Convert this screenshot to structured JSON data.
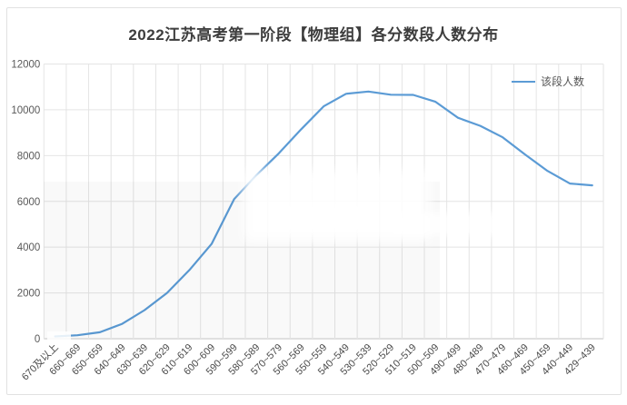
{
  "window": {
    "background": "#ffffff"
  },
  "chart_data": {
    "type": "line",
    "title": "2022江苏高考第一阶段【物理组】各分数段人数分布",
    "categories": [
      "670及以上",
      "660~669",
      "650~659",
      "640~649",
      "630~639",
      "620~629",
      "610~619",
      "600~609",
      "590~599",
      "580~589",
      "570~579",
      "560~569",
      "550~559",
      "540~549",
      "530~539",
      "520~529",
      "510~519",
      "500~509",
      "490~499",
      "480~489",
      "470~479",
      "460~469",
      "450~459",
      "440~449",
      "429~439"
    ],
    "series": [
      {
        "name": "该段人数",
        "values": [
          100,
          150,
          280,
          650,
          1250,
          2000,
          3000,
          4150,
          6100,
          7150,
          8100,
          9150,
          10150,
          10700,
          10800,
          10660,
          10650,
          10350,
          9650,
          9300,
          8800,
          8050,
          7330,
          6780,
          6700
        ]
      }
    ],
    "xlabel": "",
    "ylabel": "",
    "ylim": [
      0,
      12000
    ],
    "yticks": [
      0,
      2000,
      4000,
      6000,
      8000,
      10000,
      12000
    ],
    "ytick_labels": [
      "0",
      "2000",
      "4000",
      "6000",
      "8000",
      "10000",
      "12000"
    ],
    "grid": true,
    "legend_position": "top-right",
    "x_label_rotation": -45
  },
  "colors": {
    "line": "#5b9bd5",
    "grid": "#e4e4e4",
    "zero_axis": "#c2c2c2",
    "tick_text": "#595959",
    "title_text": "#3d3d3d",
    "card_border": "#e1e1e1"
  }
}
